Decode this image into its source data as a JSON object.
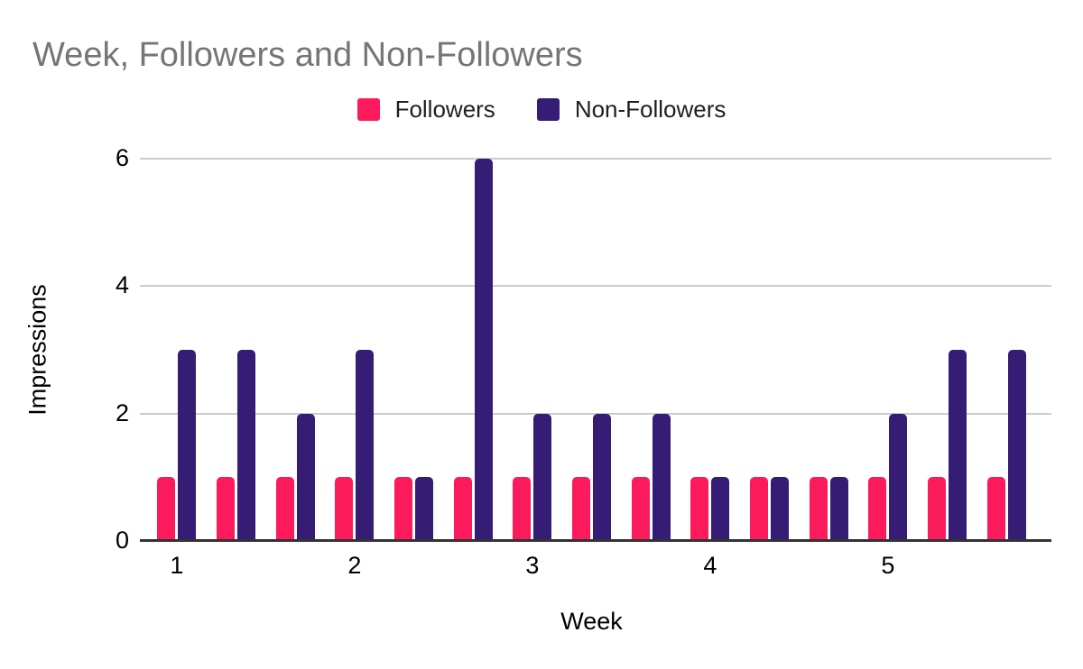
{
  "title": "Week, Followers and Non-Followers",
  "chart_data": {
    "type": "bar",
    "title": "Week, Followers and Non-Followers",
    "xlabel": "Week",
    "ylabel": "Impressions",
    "ylim": [
      0,
      6
    ],
    "yticks": [
      0,
      2,
      4,
      6
    ],
    "grid": true,
    "legend_position": "top",
    "categories": [
      "1",
      "",
      "",
      "2",
      "",
      "",
      "3",
      "",
      "",
      "4",
      "",
      "",
      "5",
      "",
      ""
    ],
    "series": [
      {
        "name": "Followers",
        "color": "#fb1b5c",
        "values": [
          1,
          1,
          1,
          1,
          1,
          1,
          1,
          1,
          1,
          1,
          1,
          1,
          1,
          1,
          1
        ]
      },
      {
        "name": "Non-Followers",
        "color": "#351c75",
        "values": [
          3,
          3,
          2,
          3,
          1,
          6,
          2,
          2,
          2,
          1,
          1,
          1,
          2,
          3,
          3
        ]
      }
    ],
    "colors": {
      "title_text": "#757575",
      "axis_text": "#000000",
      "gridline": "#cccccc",
      "axis_line": "#333333",
      "background": "#ffffff"
    }
  }
}
